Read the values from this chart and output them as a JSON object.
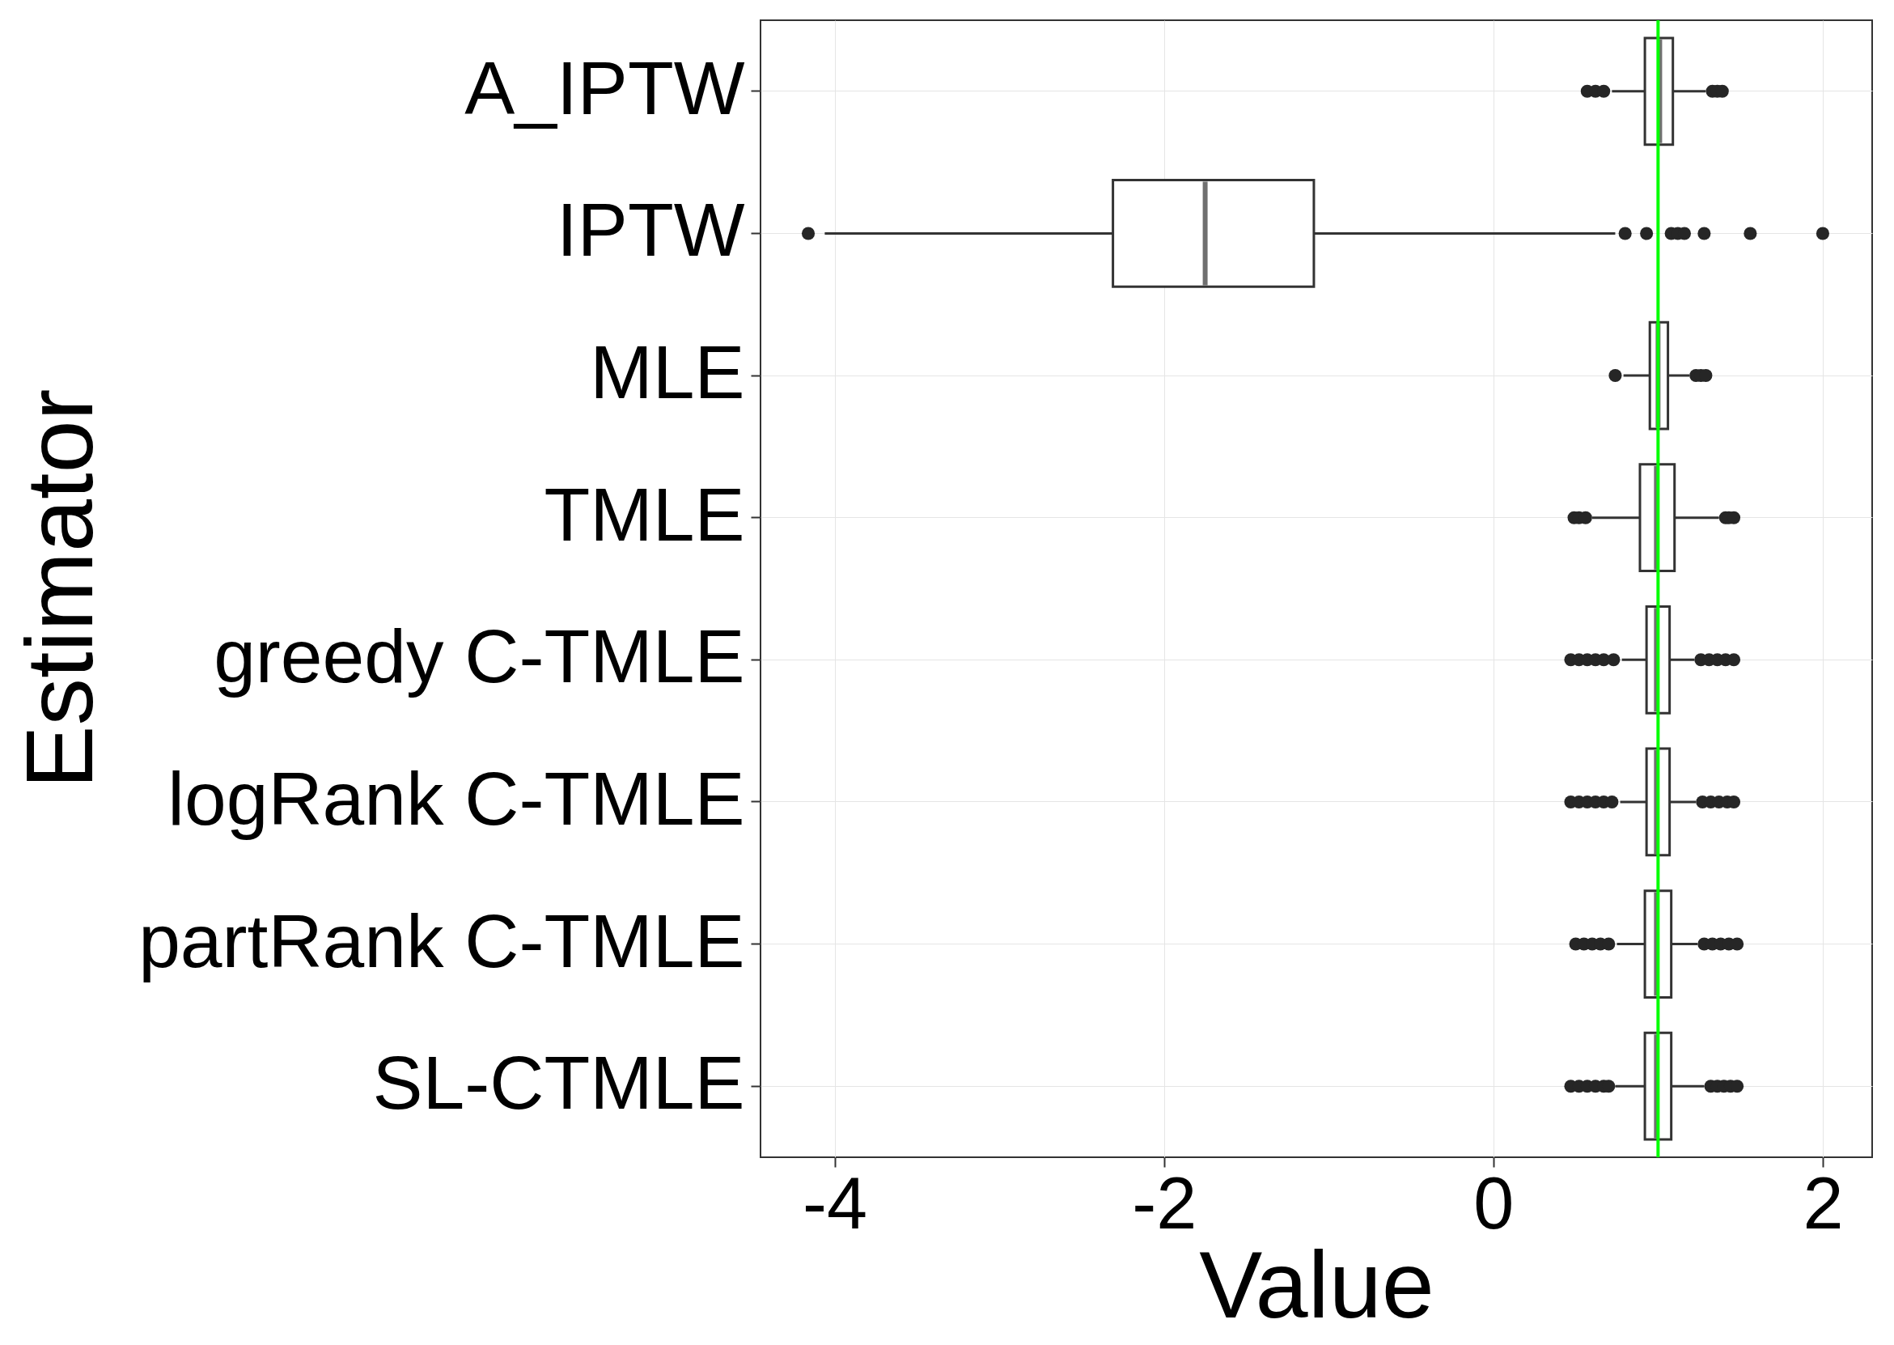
{
  "chart_data": {
    "type": "box",
    "orientation": "horizontal",
    "xlabel": "Value",
    "ylabel": "Estimator",
    "categories": [
      "A_IPTW",
      "IPTW",
      "MLE",
      "TMLE",
      "greedy C-TMLE",
      "logRank C-TMLE",
      "partRank C-TMLE",
      "SL-CTMLE"
    ],
    "boxes": [
      {
        "low": 0.72,
        "q1": 0.92,
        "median": 1.01,
        "q3": 1.09,
        "high": 1.29,
        "outliers": [
          0.57,
          0.62,
          0.67,
          1.33,
          1.36,
          1.39
        ]
      },
      {
        "low": -4.06,
        "q1": -2.31,
        "median": -1.75,
        "q3": -1.09,
        "high": 0.74,
        "outliers": [
          -4.16,
          0.8,
          0.93,
          1.08,
          1.12,
          1.16,
          1.28,
          1.56,
          2.0
        ]
      },
      {
        "low": 0.79,
        "q1": 0.95,
        "median": 1.0,
        "q3": 1.06,
        "high": 1.19,
        "outliers": [
          0.74,
          1.23,
          1.26,
          1.29
        ]
      },
      {
        "low": 0.6,
        "q1": 0.89,
        "median": 0.99,
        "q3": 1.1,
        "high": 1.37,
        "outliers": [
          0.49,
          0.52,
          0.56,
          1.41,
          1.43,
          1.46
        ]
      },
      {
        "low": 0.78,
        "q1": 0.93,
        "median": 0.99,
        "q3": 1.07,
        "high": 1.22,
        "outliers": [
          0.47,
          0.52,
          0.57,
          0.62,
          0.67,
          0.73,
          1.26,
          1.31,
          1.36,
          1.41,
          1.46
        ]
      },
      {
        "low": 0.77,
        "q1": 0.93,
        "median": 0.99,
        "q3": 1.07,
        "high": 1.23,
        "outliers": [
          0.47,
          0.52,
          0.57,
          0.62,
          0.67,
          0.72,
          1.27,
          1.32,
          1.37,
          1.42,
          1.46
        ]
      },
      {
        "low": 0.75,
        "q1": 0.92,
        "median": 0.99,
        "q3": 1.08,
        "high": 1.24,
        "outliers": [
          0.5,
          0.55,
          0.6,
          0.65,
          0.7,
          1.28,
          1.33,
          1.38,
          1.43,
          1.48
        ]
      },
      {
        "low": 0.74,
        "q1": 0.92,
        "median": 0.99,
        "q3": 1.08,
        "high": 1.28,
        "outliers": [
          0.47,
          0.52,
          0.57,
          0.62,
          0.67,
          0.7,
          1.32,
          1.36,
          1.4,
          1.44,
          1.48
        ]
      }
    ],
    "xlim": [
      -4.45,
      2.3
    ],
    "xticks": [
      -4,
      -2,
      0,
      2
    ],
    "grid": true,
    "ref_lines": [
      {
        "axis": "x",
        "value": 1,
        "color": "#00ff00"
      }
    ]
  }
}
